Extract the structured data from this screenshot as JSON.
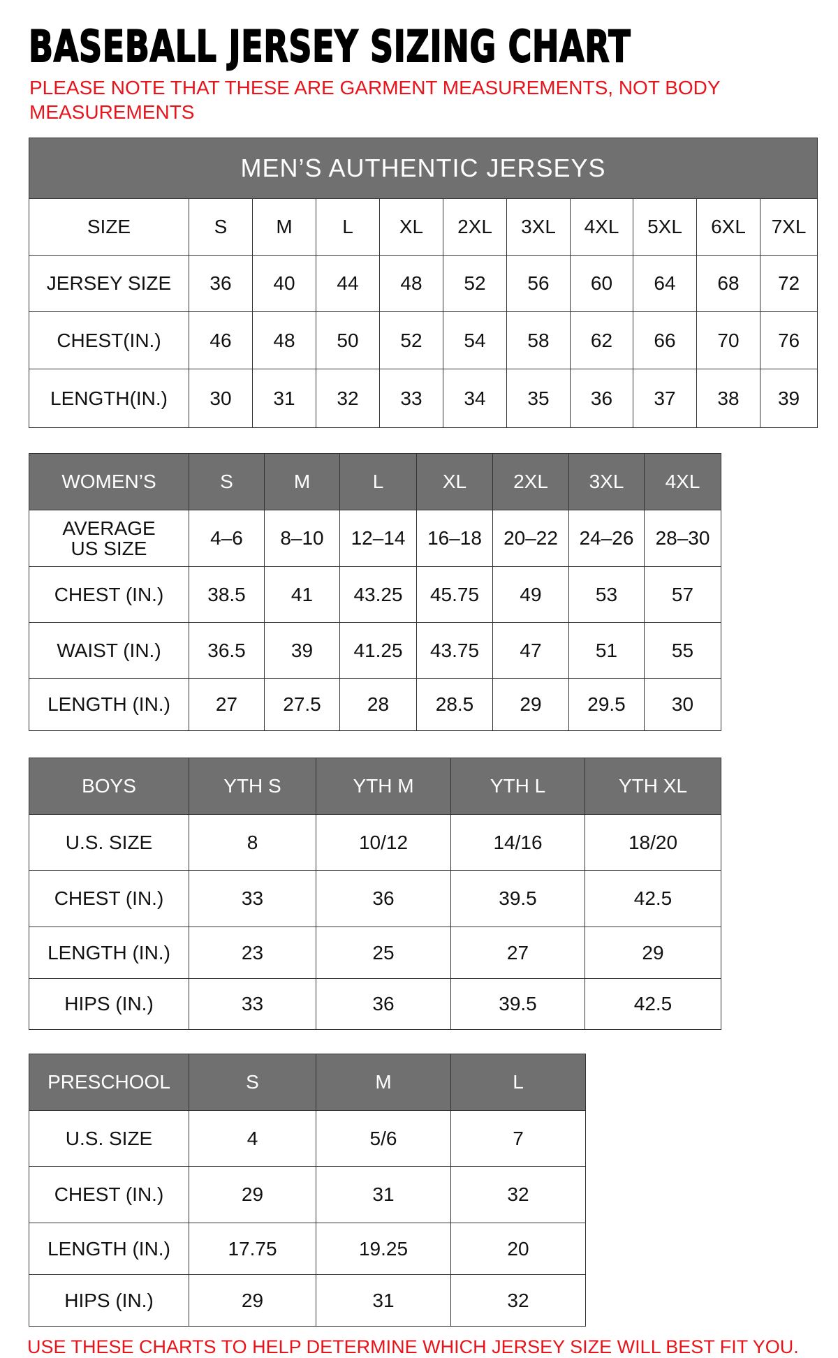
{
  "title": "BASEBALL JERSEY SIZING CHART",
  "note": "PLEASE NOTE THAT THESE ARE GARMENT MEASUREMENTS, NOT BODY MEASUREMENTS",
  "footer": "USE THESE CHARTS TO HELP DETERMINE WHICH JERSEY SIZE WILL BEST FIT YOU.",
  "colors": {
    "header_bg": "#707070",
    "note_red": "#e8141b"
  },
  "tables": [
    {
      "banner": "MEN’S AUTHENTIC JERSEYS",
      "header": [
        "SIZE",
        "S",
        "M",
        "L",
        "XL",
        "2XL",
        "3XL",
        "4XL",
        "5XL",
        "6XL",
        "7XL"
      ],
      "header_style": "plain",
      "rows": [
        [
          "JERSEY SIZE",
          "36",
          "40",
          "44",
          "48",
          "52",
          "56",
          "60",
          "64",
          "68",
          "72"
        ],
        [
          "CHEST(IN.)",
          "46",
          "48",
          "50",
          "52",
          "54",
          "58",
          "62",
          "66",
          "70",
          "76"
        ],
        [
          "LENGTH(IN.)",
          "30",
          "31",
          "32",
          "33",
          "34",
          "35",
          "36",
          "37",
          "38",
          "39"
        ]
      ]
    },
    {
      "header": [
        "WOMEN’S",
        "S",
        "M",
        "L",
        "XL",
        "2XL",
        "3XL",
        "4XL"
      ],
      "header_style": "dark",
      "rows": [
        [
          "AVERAGE US SIZE",
          "4–6",
          "8–10",
          "12–14",
          "16–18",
          "20–22",
          "24–26",
          "28–30"
        ],
        [
          "CHEST (IN.)",
          "38.5",
          "41",
          "43.25",
          "45.75",
          "49",
          "53",
          "57"
        ],
        [
          "WAIST (IN.)",
          "36.5",
          "39",
          "41.25",
          "43.75",
          "47",
          "51",
          "55"
        ],
        [
          "LENGTH (IN.)",
          "27",
          "27.5",
          "28",
          "28.5",
          "29",
          "29.5",
          "30"
        ]
      ]
    },
    {
      "header": [
        "BOYS",
        "YTH S",
        "YTH M",
        "YTH L",
        "YTH XL"
      ],
      "header_style": "dark",
      "rows": [
        [
          "U.S. SIZE",
          "8",
          "10/12",
          "14/16",
          "18/20"
        ],
        [
          "CHEST (IN.)",
          "33",
          "36",
          "39.5",
          "42.5"
        ],
        [
          "LENGTH (IN.)",
          "23",
          "25",
          "27",
          "29"
        ],
        [
          "HIPS (IN.)",
          "33",
          "36",
          "39.5",
          "42.5"
        ]
      ]
    },
    {
      "header": [
        "PRESCHOOL",
        "S",
        "M",
        "L"
      ],
      "header_style": "dark",
      "rows": [
        [
          "U.S. SIZE",
          "4",
          "5/6",
          "7"
        ],
        [
          "CHEST (IN.)",
          "29",
          "31",
          "32"
        ],
        [
          "LENGTH (IN.)",
          "17.75",
          "19.25",
          "20"
        ],
        [
          "HIPS (IN.)",
          "29",
          "31",
          "32"
        ]
      ]
    }
  ]
}
